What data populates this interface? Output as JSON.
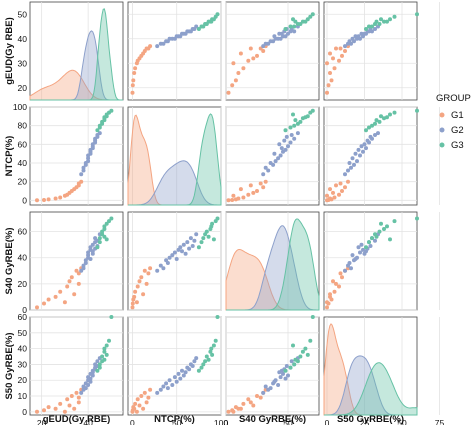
{
  "chart_data": {
    "type": "scatter",
    "kind": "pairplot",
    "variables": [
      "gEUD(Gy RBE)",
      "NTCP(%)",
      "S40 GyRBE(%)",
      "S50 GyRBE(%)"
    ],
    "ranges": [
      [
        15,
        55
      ],
      [
        -5,
        100
      ],
      [
        0,
        75
      ],
      [
        -2,
        60
      ]
    ],
    "yticks": [
      [
        20,
        30,
        40,
        50
      ],
      [
        0,
        20,
        40,
        60,
        80,
        100
      ],
      [
        0,
        20,
        40,
        60
      ],
      [
        0,
        10,
        20,
        30,
        40,
        50,
        60
      ]
    ],
    "xticks": [
      [
        20,
        40
      ],
      [
        0,
        50,
        100
      ],
      [
        0,
        50
      ],
      [
        0,
        25,
        50,
        75
      ]
    ],
    "xtick_labels": [
      [
        "20",
        "40"
      ],
      [
        "0",
        "50",
        "100"
      ],
      [
        "0",
        "50"
      ],
      [
        "0",
        "25",
        "50",
        "75"
      ]
    ],
    "diagonal": "kde",
    "grid": true,
    "legend": {
      "title": "GROUP",
      "position": "right",
      "entries": [
        "G1",
        "G2",
        "G3"
      ]
    },
    "colors": {
      "G1": "#f4a582",
      "G2": "#8da0cb",
      "G3": "#66c2a5"
    },
    "series": [
      {
        "name": "G1",
        "gEUD": [
          18,
          21,
          23,
          26,
          28,
          30,
          31,
          32,
          33,
          34,
          35,
          36,
          36,
          37
        ],
        "NTCP": [
          0.1,
          0.4,
          1,
          2,
          3,
          5,
          6,
          8,
          10,
          12,
          14,
          16,
          18,
          20
        ],
        "S40": [
          2,
          5,
          8,
          10,
          14,
          6,
          18,
          22,
          25,
          12,
          30,
          20,
          28,
          32
        ],
        "S50": [
          0,
          1,
          3,
          2,
          5,
          0,
          8,
          4,
          10,
          2,
          12,
          6,
          9,
          14
        ]
      },
      {
        "name": "G2",
        "gEUD": [
          37,
          38,
          38,
          39,
          39,
          40,
          40,
          40,
          41,
          41,
          41,
          42,
          42,
          42,
          43,
          43,
          43,
          44,
          44,
          45
        ],
        "NTCP": [
          28,
          32,
          35,
          38,
          40,
          42,
          45,
          48,
          50,
          52,
          54,
          56,
          58,
          60,
          62,
          64,
          66,
          68,
          70,
          72
        ],
        "S40": [
          30,
          34,
          32,
          38,
          36,
          40,
          42,
          44,
          39,
          46,
          48,
          45,
          50,
          43,
          52,
          47,
          55,
          49,
          53,
          58
        ],
        "S50": [
          12,
          14,
          16,
          18,
          15,
          20,
          17,
          22,
          19,
          24,
          21,
          26,
          23,
          25,
          28,
          27,
          30,
          29,
          32,
          34
        ]
      },
      {
        "name": "G3",
        "gEUD": [
          44,
          45,
          45,
          46,
          46,
          47,
          47,
          47,
          48,
          48,
          49,
          50
        ],
        "NTCP": [
          75,
          78,
          80,
          82,
          84,
          86,
          88,
          89,
          90,
          92,
          94,
          96
        ],
        "S40": [
          48,
          52,
          55,
          58,
          60,
          56,
          62,
          64,
          66,
          54,
          68,
          70
        ],
        "S50": [
          26,
          28,
          30,
          32,
          35,
          33,
          38,
          40,
          36,
          42,
          45,
          60
        ]
      }
    ]
  }
}
